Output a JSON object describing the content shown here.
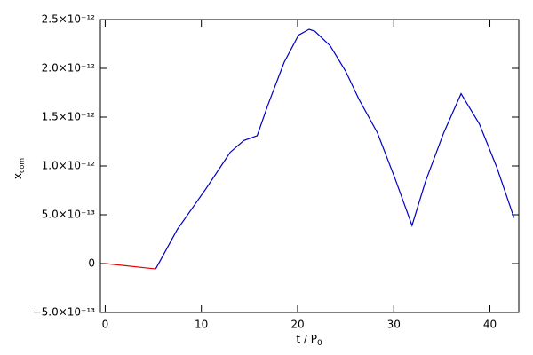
{
  "chart_data": {
    "type": "line",
    "xlabel": "t / P",
    "xlabel_sub": "0",
    "ylabel": "x",
    "ylabel_sub": "com",
    "xlim": [
      -0.5,
      43
    ],
    "xticks": [
      0,
      10,
      20,
      30,
      40
    ],
    "ylim": [
      -5e-13,
      2.5e-12
    ],
    "yticks": [
      {
        "value": -5e-13,
        "label": "−5.0×10⁻¹³"
      },
      0,
      {
        "value": 5e-13,
        "label": "5.0×10⁻¹³"
      },
      {
        "value": 1e-12,
        "label": "1.0×10⁻¹²"
      },
      {
        "value": 1.5e-12,
        "label": "1.5×10⁻¹²"
      },
      {
        "value": 2e-12,
        "label": "2.0×10⁻¹²"
      },
      {
        "value": 2.5e-12,
        "label": "2.5×10⁻¹²"
      }
    ],
    "series": [
      {
        "color": "#e00000",
        "x": [
          0,
          5.25
        ],
        "values": [
          0,
          -5.5e-14
        ]
      },
      {
        "color": "#0000c0",
        "x": [
          5.25,
          7.5,
          10.5,
          13.0,
          14.4,
          15.8,
          16.9,
          18.6,
          20.1,
          21.2,
          21.8,
          23.4,
          25.0,
          26.4,
          28.3,
          30.1,
          31.9,
          33.3,
          35.2,
          37.0,
          38.9,
          40.7,
          42.5
        ],
        "values": [
          -5.5e-14,
          3.5e-13,
          7.7e-13,
          1.14e-12,
          1.26e-12,
          1.31e-12,
          1.62e-12,
          2.06e-12,
          2.34e-12,
          2.4e-12,
          2.38e-12,
          2.23e-12,
          1.97e-12,
          1.68e-12,
          1.34e-12,
          8.8e-13,
          3.9e-13,
          8.4e-13,
          1.34e-12,
          1.74e-12,
          1.43e-12,
          9.9e-13,
          4.7e-13
        ]
      }
    ]
  }
}
